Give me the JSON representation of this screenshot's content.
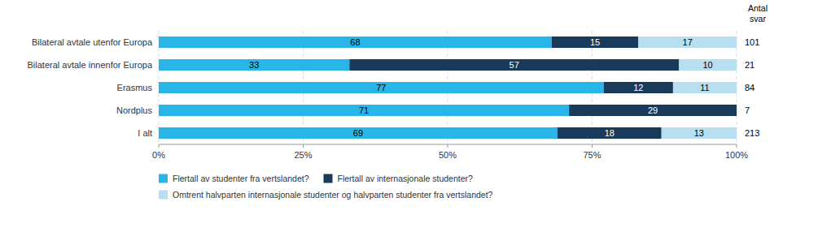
{
  "chart_data": {
    "type": "bar",
    "orientation": "horizontal",
    "stacked": true,
    "categories": [
      "Bilateral avtale utenfor Europa",
      "Bilateral avtale innenfor Europa",
      "Erasmus",
      "Nordplus",
      "I alt"
    ],
    "series": [
      {
        "name": "Flertall av studenter fra vertslandet?",
        "color": "#29b5e8",
        "values": [
          68,
          33,
          77,
          71,
          69
        ]
      },
      {
        "name": "Flertall av internasjonale studenter?",
        "color": "#1a3a5c",
        "values": [
          15,
          57,
          12,
          29,
          18
        ]
      },
      {
        "name": "Omtrent halvparten internasjonale studenter og halvparten studenter fra vertslandet?",
        "color": "#b8dff0",
        "values": [
          17,
          10,
          11,
          0,
          13
        ]
      }
    ],
    "xlim": [
      0,
      100
    ],
    "xticks": [
      {
        "value": 0,
        "label": "0%"
      },
      {
        "value": 25,
        "label": "25%"
      },
      {
        "value": 50,
        "label": "50%"
      },
      {
        "value": 75,
        "label": "75%"
      },
      {
        "value": 100,
        "label": "100%"
      }
    ],
    "grid": true,
    "data_labels": true,
    "legend": "bottom",
    "annotation": "Antal\nsvar",
    "response_counts": [
      101,
      21,
      84,
      7,
      213
    ]
  }
}
